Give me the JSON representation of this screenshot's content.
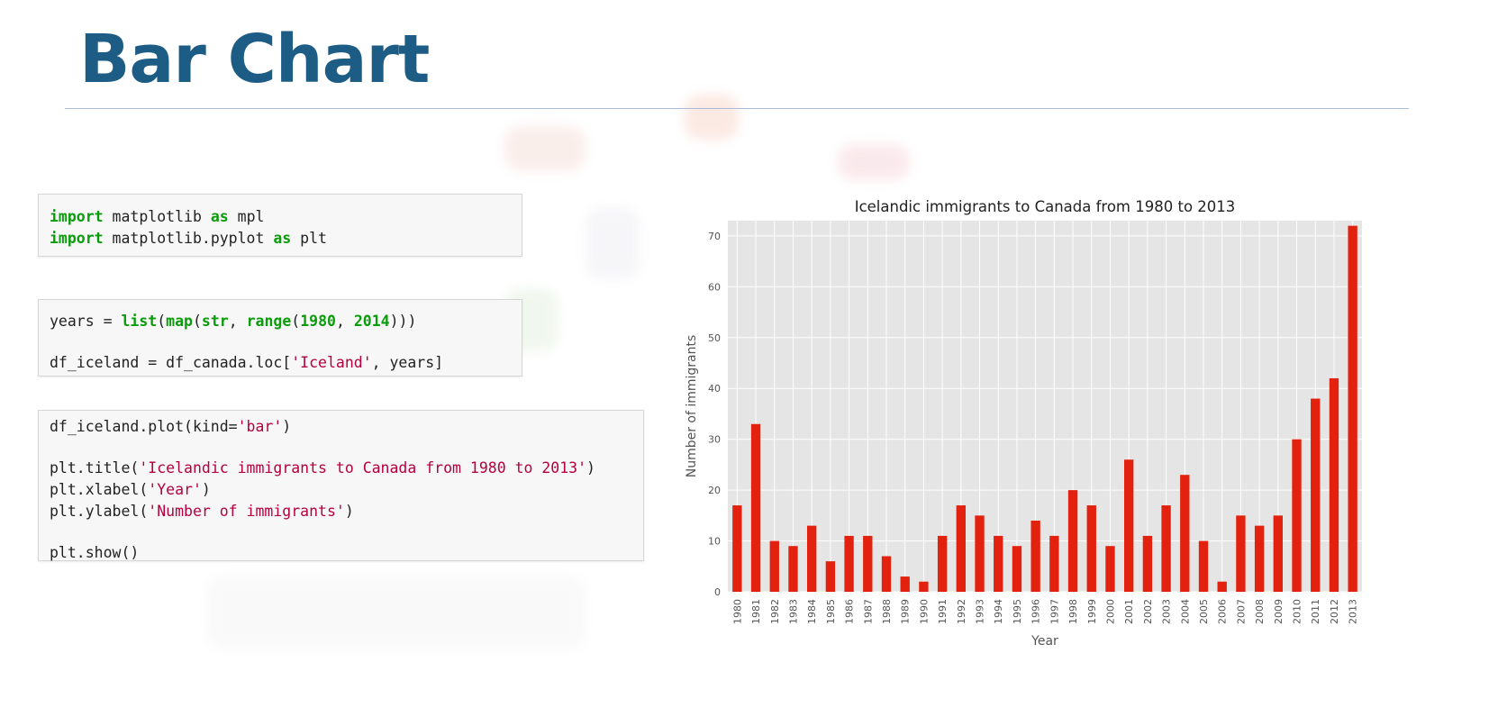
{
  "slide": {
    "title": "Bar Chart"
  },
  "code_cells": [
    {
      "lines": [
        [
          {
            "t": "import",
            "c": "kw"
          },
          {
            "t": " matplotlib "
          },
          {
            "t": "as",
            "c": "kw"
          },
          {
            "t": " mpl"
          }
        ],
        [
          {
            "t": "import",
            "c": "kw"
          },
          {
            "t": " matplotlib.pyplot "
          },
          {
            "t": "as",
            "c": "kw"
          },
          {
            "t": " plt"
          }
        ]
      ]
    },
    {
      "lines": [
        [
          {
            "t": "years = "
          },
          {
            "t": "list",
            "c": "fn"
          },
          {
            "t": "("
          },
          {
            "t": "map",
            "c": "fn"
          },
          {
            "t": "("
          },
          {
            "t": "str",
            "c": "fn"
          },
          {
            "t": ", "
          },
          {
            "t": "range",
            "c": "fn"
          },
          {
            "t": "("
          },
          {
            "t": "1980",
            "c": "num"
          },
          {
            "t": ", "
          },
          {
            "t": "2014",
            "c": "num"
          },
          {
            "t": ")))"
          }
        ],
        [],
        [
          {
            "t": "df_iceland = df_canada.loc["
          },
          {
            "t": "'Iceland'",
            "c": "str"
          },
          {
            "t": ", years]"
          }
        ]
      ]
    },
    {
      "lines": [
        [
          {
            "t": "df_iceland.plot(kind="
          },
          {
            "t": "'bar'",
            "c": "str"
          },
          {
            "t": ")"
          }
        ],
        [],
        [
          {
            "t": "plt.title("
          },
          {
            "t": "'Icelandic immigrants to Canada from 1980 to 2013'",
            "c": "str"
          },
          {
            "t": ")"
          }
        ],
        [
          {
            "t": "plt.xlabel("
          },
          {
            "t": "'Year'",
            "c": "str"
          },
          {
            "t": ")"
          }
        ],
        [
          {
            "t": "plt.ylabel("
          },
          {
            "t": "'Number of immigrants'",
            "c": "str"
          },
          {
            "t": ")"
          }
        ],
        [],
        [
          {
            "t": "plt.show()"
          }
        ]
      ]
    }
  ],
  "colors": {
    "title": "#1d5c84",
    "bar": "#e2220e",
    "plot_bg": "#e5e5e5",
    "grid": "#ffffff",
    "keyword": "#0a9c0a",
    "string": "#b5003f"
  },
  "chart_data": {
    "type": "bar",
    "title": "Icelandic immigrants to Canada from 1980 to 2013",
    "xlabel": "Year",
    "ylabel": "Number of immigrants",
    "ylim": [
      0,
      73
    ],
    "yticks": [
      0,
      10,
      20,
      30,
      40,
      50,
      60,
      70
    ],
    "grid": true,
    "categories": [
      "1980",
      "1981",
      "1982",
      "1983",
      "1984",
      "1985",
      "1986",
      "1987",
      "1988",
      "1989",
      "1990",
      "1991",
      "1992",
      "1993",
      "1994",
      "1995",
      "1996",
      "1997",
      "1998",
      "1999",
      "2000",
      "2001",
      "2002",
      "2003",
      "2004",
      "2005",
      "2006",
      "2007",
      "2008",
      "2009",
      "2010",
      "2011",
      "2012",
      "2013"
    ],
    "values": [
      17,
      33,
      10,
      9,
      13,
      6,
      11,
      11,
      7,
      3,
      2,
      11,
      17,
      15,
      11,
      9,
      14,
      11,
      20,
      17,
      9,
      26,
      11,
      17,
      23,
      10,
      2,
      15,
      13,
      15,
      30,
      38,
      42,
      72
    ]
  }
}
